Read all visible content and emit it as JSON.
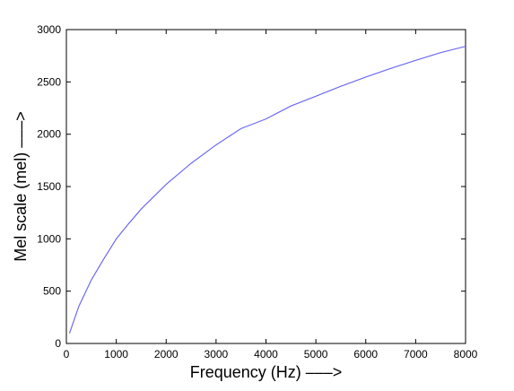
{
  "chart_data": {
    "type": "line",
    "title": "",
    "xlabel": "Frequency (Hz) –––>",
    "ylabel": "Mel scale (mel) –––>",
    "xlim": [
      0,
      8000
    ],
    "ylim": [
      0,
      3000
    ],
    "x_ticks": [
      "0",
      "1000",
      "2000",
      "3000",
      "4000",
      "5000",
      "6000",
      "7000",
      "8000"
    ],
    "y_ticks": [
      "0",
      "500",
      "1000",
      "1500",
      "2000",
      "2500",
      "3000"
    ],
    "grid": false,
    "legend": "none",
    "line_color": "#6b6bf0",
    "series": [
      {
        "x": [
          62.5,
          250,
          500,
          750,
          1000,
          1250,
          1500,
          2000,
          2500,
          3000,
          3500,
          4000,
          4500,
          5000,
          5500,
          6000,
          6500,
          7000,
          7500,
          8000
        ],
        "values": [
          97.4,
          356,
          607,
          808,
          1000,
          1146,
          1285,
          1521,
          1722,
          1898,
          2054,
          2146,
          2270,
          2363,
          2458,
          2546,
          2629,
          2706,
          2780,
          2840
        ]
      }
    ]
  }
}
